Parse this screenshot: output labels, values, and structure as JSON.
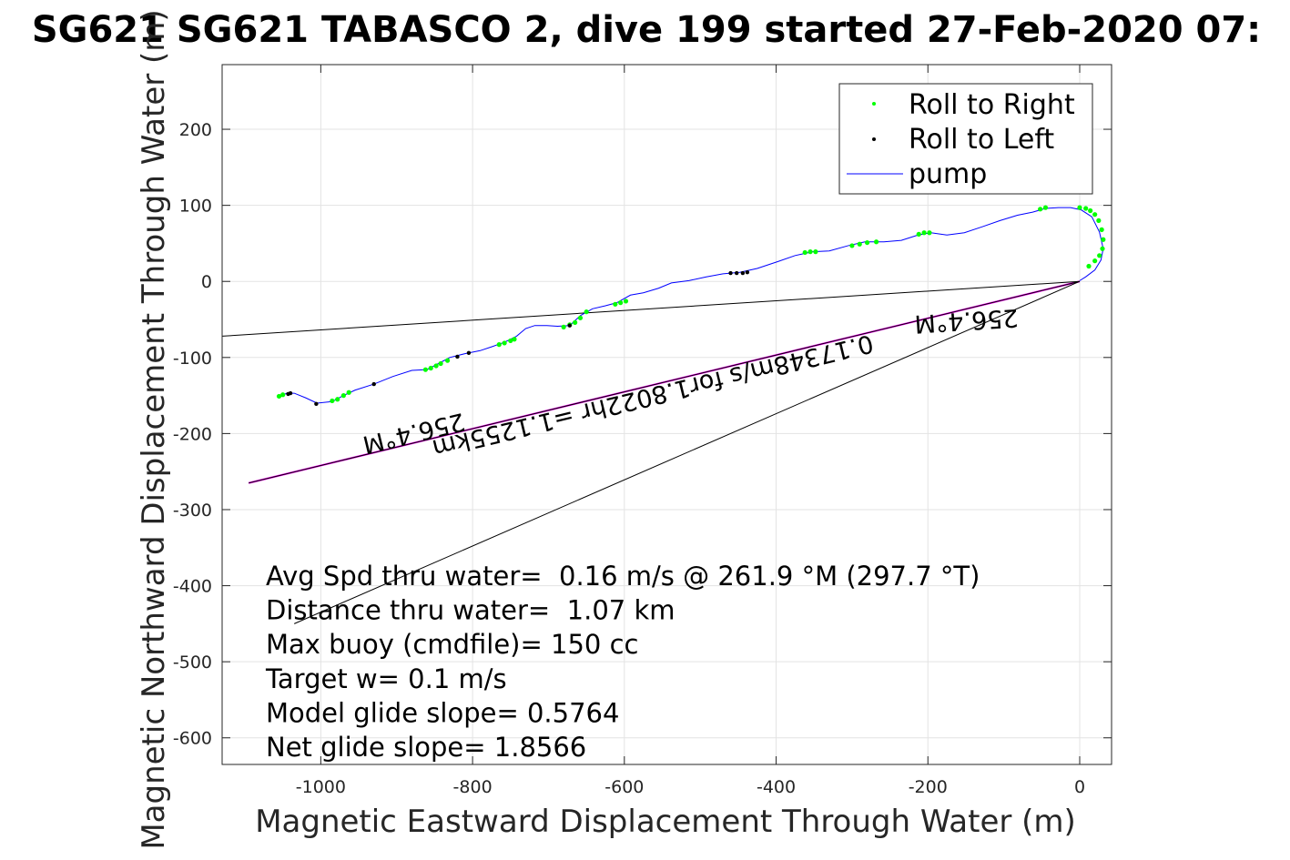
{
  "chart_data": {
    "type": "line",
    "title": "SG621 SG621 TABASCO 2, dive 199 started 27-Feb-2020 07:",
    "xlabel": "Magnetic Eastward Displacement Through Water (m)",
    "ylabel": "Magnetic Northward Displacement Through Water (m)",
    "xlim": [
      -1130,
      42
    ],
    "ylim": [
      -635,
      285
    ],
    "xticks": [
      -1000,
      -800,
      -600,
      -400,
      -200,
      0
    ],
    "yticks": [
      -600,
      -500,
      -400,
      -300,
      -200,
      -100,
      0,
      100,
      200
    ],
    "grid": true,
    "legend_position": "top-right",
    "legend": [
      {
        "label": "Roll to Right",
        "marker": "dot",
        "color": "#00ff00"
      },
      {
        "label": "Roll to Left",
        "marker": "dot",
        "color": "#000000"
      },
      {
        "label": "pump",
        "marker": "line",
        "color": "#0000ff"
      }
    ],
    "series": [
      {
        "name": "pump",
        "color": "#0000ff",
        "x": [
          -1055,
          -1045,
          -1035,
          -1020,
          -1005,
          -985,
          -970,
          -955,
          -930,
          -905,
          -880,
          -860,
          -845,
          -830,
          -810,
          -790,
          -775,
          -758,
          -742,
          -730,
          -718,
          -702,
          -688,
          -672,
          -658,
          -642,
          -625,
          -610,
          -592,
          -575,
          -555,
          -538,
          -515,
          -492,
          -470,
          -448,
          -425,
          -398,
          -375,
          -352,
          -330,
          -305,
          -283,
          -258,
          -235,
          -213,
          -196,
          -175,
          -152,
          -128,
          -105,
          -82,
          -62,
          -45,
          -28,
          -12,
          2,
          16,
          26,
          31,
          28,
          20,
          8,
          0
        ],
        "y": [
          -152,
          -147,
          -147,
          -153,
          -160,
          -158,
          -150,
          -143,
          -135,
          -125,
          -117,
          -116,
          -108,
          -100,
          -95,
          -91,
          -86,
          -80,
          -72,
          -62,
          -58,
          -58,
          -59,
          -58,
          -45,
          -36,
          -32,
          -28,
          -18,
          -15,
          -9,
          -2,
          1,
          6,
          10,
          12,
          17,
          26,
          34,
          39,
          40,
          47,
          52,
          52,
          54,
          61,
          64,
          61,
          64,
          72,
          80,
          87,
          91,
          96,
          97,
          97,
          94,
          85,
          65,
          43,
          28,
          15,
          6,
          1
        ]
      },
      {
        "name": "Roll to Right",
        "color": "#00ff00",
        "x": [
          -1055,
          -1050,
          -985,
          -978,
          -970,
          -963,
          -862,
          -855,
          -848,
          -842,
          -833,
          -765,
          -758,
          -750,
          -745,
          -680,
          -672,
          -665,
          -658,
          -650,
          -612,
          -605,
          -598,
          -362,
          -355,
          -348,
          -300,
          -290,
          -280,
          -268,
          -212,
          -205,
          -198,
          -52,
          -45,
          0,
          8,
          14,
          20,
          25,
          29,
          31,
          30,
          26,
          20,
          12
        ],
        "y": [
          -151,
          -149,
          -157,
          -155,
          -150,
          -146,
          -116,
          -114,
          -111,
          -108,
          -104,
          -83,
          -81,
          -78,
          -76,
          -60,
          -57,
          -54,
          -48,
          -40,
          -30,
          -28,
          -26,
          38,
          39,
          39,
          47,
          49,
          51,
          52,
          62,
          64,
          64,
          95,
          97,
          97,
          96,
          93,
          88,
          80,
          68,
          55,
          43,
          34,
          27,
          20
        ]
      },
      {
        "name": "Roll to Left",
        "color": "#000000",
        "x": [
          -1043,
          -1040,
          -1006,
          -930,
          -820,
          -805,
          -672,
          -460,
          -452,
          -444,
          -438
        ],
        "y": [
          -148,
          -147,
          -161,
          -135,
          -99,
          -94,
          -58,
          11,
          11,
          11,
          12
        ]
      }
    ],
    "reference_lines": [
      {
        "name": "distance-line",
        "color": "#ff00ff",
        "x": [
          0,
          -1095
        ],
        "y": [
          0,
          -265
        ]
      },
      {
        "name": "heading-line",
        "color": "#000000",
        "x": [
          0,
          -1095
        ],
        "y": [
          0,
          -265
        ]
      },
      {
        "name": "current-line-upper",
        "color": "#000000",
        "x": [
          0,
          -1130
        ],
        "y": [
          0,
          -72
        ]
      },
      {
        "name": "current-line-lower",
        "color": "#000000",
        "x": [
          0,
          -1035
        ],
        "y": [
          0,
          -450
        ]
      }
    ],
    "rotated_labels": [
      {
        "text": "256.4°M",
        "x": -880,
        "y": -189,
        "angle": 166.4
      },
      {
        "text": "0.17348m/s for1.8022hr =1.1255km",
        "x": -565,
        "y": -140,
        "angle": 166.4
      },
      {
        "text": "256.4°M",
        "x": -150,
        "y": -41,
        "angle": 176.4
      }
    ],
    "annotations": [
      "Avg Spd thru water=  0.16 m/s @ 261.9 °M (297.7 °T)",
      "Distance thru water=  1.07 km",
      "Max buoy (cmdfile)= 150 cc",
      "Target w= 0.1 m/s",
      "Model glide slope= 0.5764",
      "Net glide slope= 1.8566"
    ]
  }
}
